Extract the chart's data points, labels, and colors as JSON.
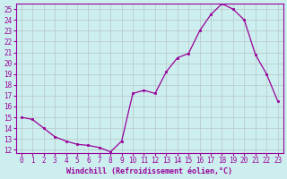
{
  "x": [
    0,
    1,
    2,
    3,
    4,
    5,
    6,
    7,
    8,
    9,
    10,
    11,
    12,
    13,
    14,
    15,
    16,
    17,
    18,
    19,
    20,
    21,
    22,
    23
  ],
  "y": [
    15.0,
    14.8,
    14.0,
    13.2,
    12.8,
    12.5,
    12.4,
    12.2,
    11.8,
    12.8,
    17.2,
    17.5,
    17.2,
    19.2,
    20.5,
    20.9,
    23.0,
    24.5,
    25.5,
    25.0,
    24.0,
    20.8,
    19.0,
    16.5
  ],
  "line_color": "#990099",
  "marker_color": "#990099",
  "bg_color": "#cceeee",
  "grid_color": "#bbcccc",
  "xlabel": "Windchill (Refroidissement éolien,°C)",
  "ylim": [
    12,
    25
  ],
  "xlim": [
    -0.5,
    23.5
  ],
  "yticks": [
    12,
    13,
    14,
    15,
    16,
    17,
    18,
    19,
    20,
    21,
    22,
    23,
    24,
    25
  ],
  "xticks": [
    0,
    1,
    2,
    3,
    4,
    5,
    6,
    7,
    8,
    9,
    10,
    11,
    12,
    13,
    14,
    15,
    16,
    17,
    18,
    19,
    20,
    21,
    22,
    23
  ],
  "tick_fontsize": 5.5,
  "xlabel_fontsize": 6.0
}
